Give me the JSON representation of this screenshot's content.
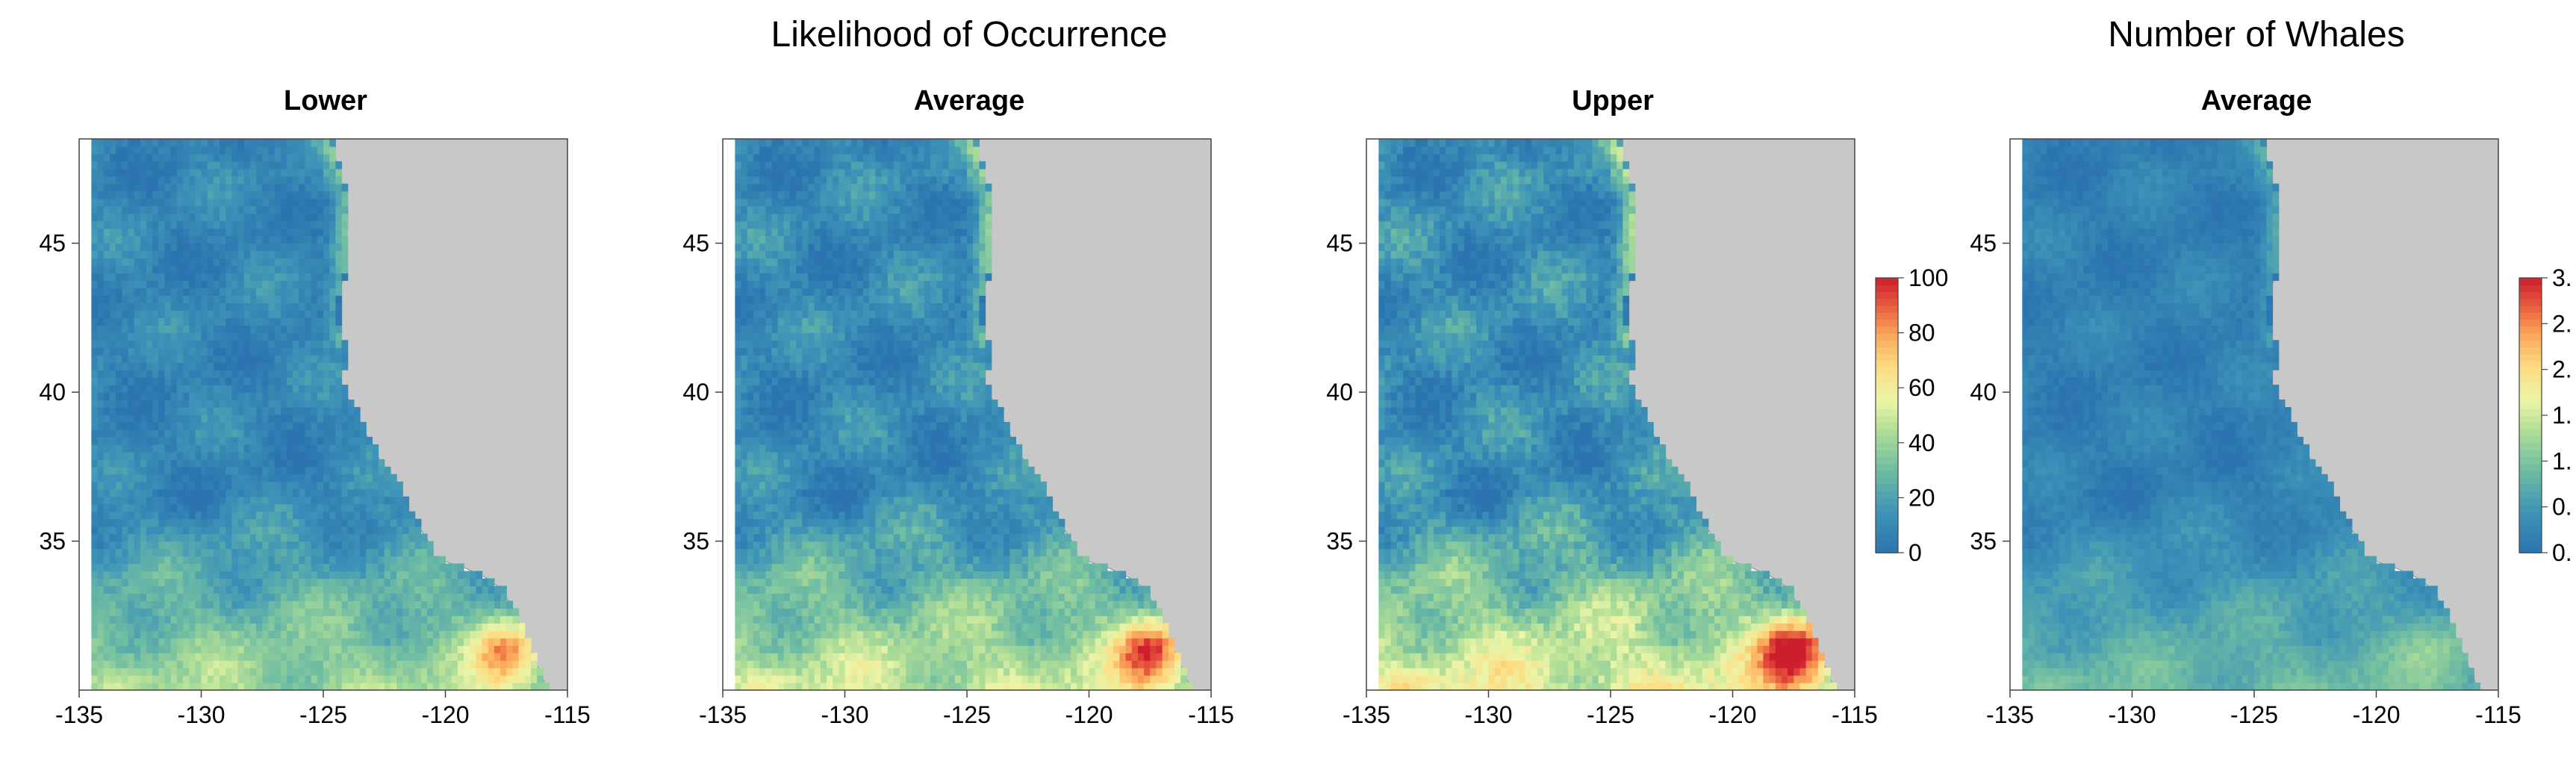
{
  "figure": {
    "group_titles": [
      "Likelihood of Occurrence",
      "Number of Whales"
    ]
  },
  "chart_data": [
    {
      "type": "heatmap",
      "group": "Likelihood of Occurrence",
      "title": "Lower",
      "xlim": [
        -135,
        -115
      ],
      "ylim": [
        30,
        48.5
      ],
      "xticks": [
        "-135",
        "-130",
        "-125",
        "-120",
        "-115"
      ],
      "yticks": [
        "35",
        "40",
        "45"
      ],
      "intensity": 0.85,
      "colorscale": "spectral-reversed",
      "land_color": "#c8c8c8",
      "hotspot": {
        "lon": -117.5,
        "lat": 31.3,
        "level": "high"
      }
    },
    {
      "type": "heatmap",
      "group": "Likelihood of Occurrence",
      "title": "Average",
      "xlim": [
        -135,
        -115
      ],
      "ylim": [
        30,
        48.5
      ],
      "xticks": [
        "-135",
        "-130",
        "-125",
        "-120",
        "-115"
      ],
      "yticks": [
        "35",
        "40",
        "45"
      ],
      "intensity": 1.0,
      "colorscale": "spectral-reversed",
      "land_color": "#c8c8c8",
      "hotspot": {
        "lon": -117.5,
        "lat": 31.3,
        "level": "high"
      }
    },
    {
      "type": "heatmap",
      "group": "Likelihood of Occurrence",
      "title": "Upper",
      "xlim": [
        -135,
        -115
      ],
      "ylim": [
        30,
        48.5
      ],
      "xticks": [
        "-135",
        "-130",
        "-125",
        "-120",
        "-115"
      ],
      "yticks": [
        "35",
        "40",
        "45"
      ],
      "intensity": 1.15,
      "colorscale": "spectral-reversed",
      "land_color": "#c8c8c8",
      "hotspot": {
        "lon": -117.5,
        "lat": 31.3,
        "level": "high"
      },
      "colorbar": {
        "min": 0,
        "max": 100,
        "ticks": [
          "0",
          "20",
          "40",
          "60",
          "80",
          "100"
        ]
      }
    },
    {
      "type": "heatmap",
      "group": "Number of Whales",
      "title": "Average",
      "xlim": [
        -135,
        -115
      ],
      "ylim": [
        30,
        48.5
      ],
      "xticks": [
        "-135",
        "-130",
        "-125",
        "-120",
        "-115"
      ],
      "yticks": [
        "35",
        "40",
        "45"
      ],
      "intensity": 0.6,
      "colorscale": "spectral-reversed",
      "land_color": "#c8c8c8",
      "hotspot": {
        "lon": -117.5,
        "lat": 31.3,
        "level": "low"
      },
      "colorbar": {
        "ticks": [
          "0.",
          "0.",
          "1.",
          "1.",
          "2.",
          "2.",
          "3."
        ]
      }
    }
  ]
}
